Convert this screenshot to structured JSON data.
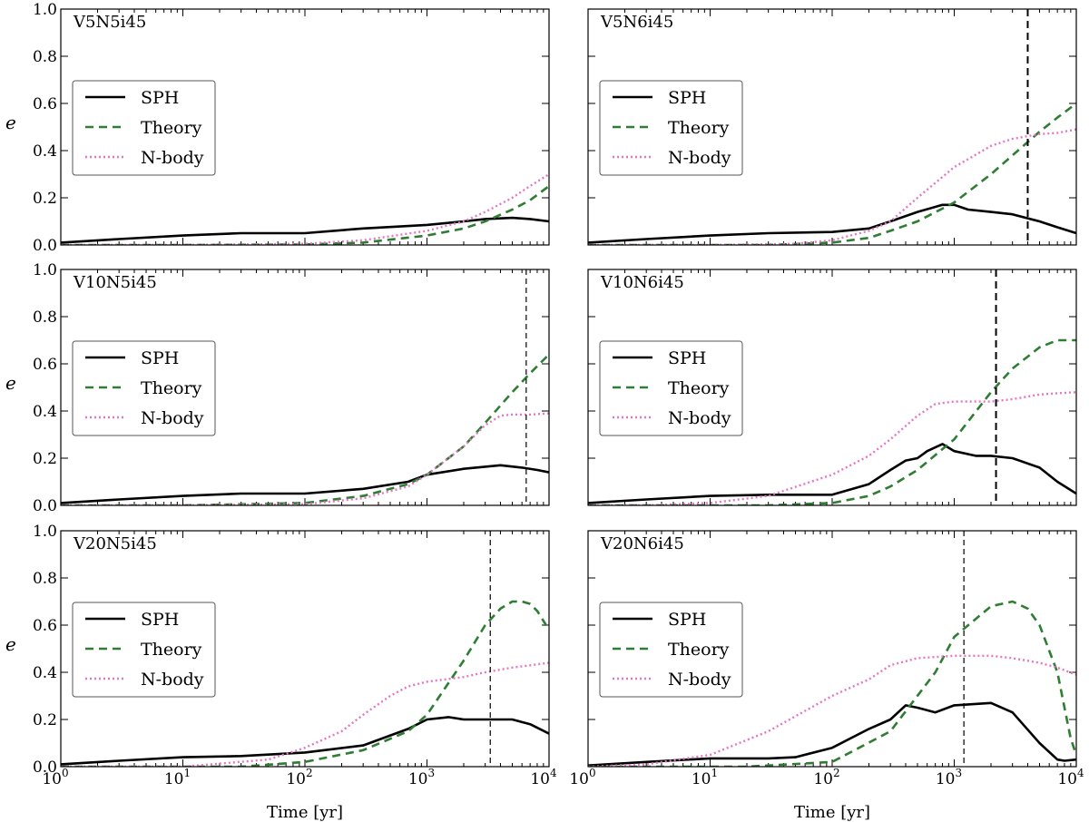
{
  "chart_data": [
    {
      "type": "line",
      "title": "V5N5i45",
      "xscale": "log",
      "xlim": [
        1,
        10000
      ],
      "ylim": [
        0,
        1.0
      ],
      "xlabel": "",
      "ylabel": "e",
      "legend_position": "center-left",
      "vline": null,
      "series": [
        {
          "name": "SPH",
          "style": "solid",
          "color": "#000000",
          "x": [
            1,
            3,
            10,
            30,
            100,
            300,
            1000,
            2000,
            3000,
            5000,
            7000,
            10000
          ],
          "y": [
            0.01,
            0.025,
            0.04,
            0.05,
            0.05,
            0.07,
            0.085,
            0.1,
            0.11,
            0.115,
            0.11,
            0.1
          ]
        },
        {
          "name": "Theory",
          "style": "dashed",
          "color": "#2e7d32",
          "x": [
            1,
            10,
            100,
            300,
            1000,
            2000,
            3000,
            5000,
            7000,
            10000
          ],
          "y": [
            0,
            0,
            0.002,
            0.01,
            0.04,
            0.07,
            0.1,
            0.15,
            0.19,
            0.25
          ]
        },
        {
          "name": "N-body",
          "style": "dotted",
          "color": "#e377c2",
          "x": [
            1,
            10,
            100,
            300,
            1000,
            2000,
            3000,
            5000,
            7000,
            10000
          ],
          "y": [
            0,
            0,
            0.005,
            0.02,
            0.06,
            0.1,
            0.14,
            0.2,
            0.25,
            0.3
          ]
        }
      ]
    },
    {
      "type": "line",
      "title": "V5N6i45",
      "xscale": "log",
      "xlim": [
        1,
        10000
      ],
      "ylim": [
        0,
        1.0
      ],
      "xlabel": "",
      "ylabel": "",
      "legend_position": "center-left",
      "vline": {
        "x": 4000,
        "style": "thick"
      },
      "series": [
        {
          "name": "SPH",
          "style": "solid",
          "color": "#000000",
          "x": [
            1,
            3,
            10,
            30,
            100,
            200,
            300,
            500,
            800,
            1000,
            1300,
            2000,
            3000,
            5000,
            7000,
            10000
          ],
          "y": [
            0.01,
            0.025,
            0.04,
            0.05,
            0.055,
            0.07,
            0.1,
            0.14,
            0.17,
            0.17,
            0.15,
            0.14,
            0.13,
            0.1,
            0.075,
            0.05
          ]
        },
        {
          "name": "Theory",
          "style": "dashed",
          "color": "#2e7d32",
          "x": [
            1,
            30,
            100,
            200,
            300,
            500,
            1000,
            2000,
            3000,
            5000,
            7000,
            10000
          ],
          "y": [
            0,
            0,
            0.01,
            0.03,
            0.06,
            0.1,
            0.18,
            0.3,
            0.38,
            0.48,
            0.54,
            0.6
          ]
        },
        {
          "name": "N-body",
          "style": "dotted",
          "color": "#e377c2",
          "x": [
            1,
            10,
            50,
            100,
            200,
            300,
            500,
            1000,
            2000,
            3000,
            5000,
            7000,
            10000
          ],
          "y": [
            0,
            0,
            0.005,
            0.02,
            0.06,
            0.1,
            0.2,
            0.33,
            0.42,
            0.45,
            0.47,
            0.475,
            0.49
          ]
        }
      ]
    },
    {
      "type": "line",
      "title": "V10N5i45",
      "xscale": "log",
      "xlim": [
        1,
        10000
      ],
      "ylim": [
        0,
        1.0
      ],
      "xlabel": "",
      "ylabel": "e",
      "legend_position": "center-left",
      "vline": {
        "x": 6500,
        "style": "thin"
      },
      "series": [
        {
          "name": "SPH",
          "style": "solid",
          "color": "#000000",
          "x": [
            1,
            3,
            10,
            30,
            100,
            300,
            700,
            1000,
            2000,
            4000,
            6000,
            8000,
            10000
          ],
          "y": [
            0.01,
            0.025,
            0.04,
            0.05,
            0.05,
            0.07,
            0.1,
            0.13,
            0.155,
            0.17,
            0.16,
            0.15,
            0.14
          ]
        },
        {
          "name": "Theory",
          "style": "dashed",
          "color": "#2e7d32",
          "x": [
            1,
            10,
            100,
            300,
            700,
            1000,
            2000,
            3000,
            5000,
            7000,
            10000
          ],
          "y": [
            0,
            0,
            0.01,
            0.04,
            0.09,
            0.13,
            0.25,
            0.35,
            0.48,
            0.56,
            0.64
          ]
        },
        {
          "name": "N-body",
          "style": "dotted",
          "color": "#e377c2",
          "x": [
            1,
            10,
            100,
            300,
            700,
            1000,
            2000,
            3000,
            4000,
            5000,
            7000,
            10000
          ],
          "y": [
            0,
            0,
            0.005,
            0.03,
            0.08,
            0.13,
            0.25,
            0.34,
            0.38,
            0.385,
            0.385,
            0.39
          ]
        }
      ]
    },
    {
      "type": "line",
      "title": "V10N6i45",
      "xscale": "log",
      "xlim": [
        1,
        10000
      ],
      "ylim": [
        0,
        1.0
      ],
      "xlabel": "",
      "ylabel": "",
      "legend_position": "center-left",
      "vline": {
        "x": 2200,
        "style": "thick"
      },
      "series": [
        {
          "name": "SPH",
          "style": "solid",
          "color": "#000000",
          "x": [
            1,
            3,
            10,
            30,
            100,
            200,
            300,
            400,
            500,
            600,
            800,
            1000,
            1500,
            2000,
            3000,
            5000,
            7000,
            10000
          ],
          "y": [
            0.01,
            0.025,
            0.04,
            0.045,
            0.045,
            0.09,
            0.15,
            0.19,
            0.2,
            0.23,
            0.26,
            0.23,
            0.21,
            0.21,
            0.2,
            0.16,
            0.1,
            0.05
          ]
        },
        {
          "name": "Theory",
          "style": "dashed",
          "color": "#2e7d32",
          "x": [
            1,
            30,
            100,
            200,
            300,
            500,
            1000,
            2000,
            3000,
            5000,
            7000,
            10000
          ],
          "y": [
            0,
            0,
            0.01,
            0.04,
            0.08,
            0.15,
            0.28,
            0.48,
            0.58,
            0.67,
            0.7,
            0.7
          ]
        },
        {
          "name": "N-body",
          "style": "dotted",
          "color": "#e377c2",
          "x": [
            1,
            3,
            10,
            30,
            100,
            200,
            300,
            500,
            700,
            1000,
            2000,
            3000,
            5000,
            10000
          ],
          "y": [
            0,
            0,
            0.01,
            0.04,
            0.13,
            0.21,
            0.28,
            0.38,
            0.43,
            0.44,
            0.44,
            0.45,
            0.47,
            0.48
          ]
        }
      ]
    },
    {
      "type": "line",
      "title": "V20N5i45",
      "xscale": "log",
      "xlim": [
        1,
        10000
      ],
      "ylim": [
        0,
        1.0
      ],
      "xlabel": "Time [yr]",
      "ylabel": "e",
      "legend_position": "center-left",
      "vline": {
        "x": 3300,
        "style": "thin"
      },
      "series": [
        {
          "name": "SPH",
          "style": "solid",
          "color": "#000000",
          "x": [
            1,
            3,
            10,
            30,
            100,
            300,
            700,
            1000,
            1500,
            2000,
            3000,
            5000,
            7000,
            10000
          ],
          "y": [
            0.01,
            0.025,
            0.04,
            0.045,
            0.06,
            0.09,
            0.16,
            0.2,
            0.21,
            0.2,
            0.2,
            0.2,
            0.18,
            0.14
          ]
        },
        {
          "name": "Theory",
          "style": "dashed",
          "color": "#2e7d32",
          "x": [
            1,
            30,
            100,
            300,
            700,
            1000,
            2000,
            3000,
            4000,
            5000,
            6000,
            7000,
            8000,
            10000
          ],
          "y": [
            0,
            0,
            0.02,
            0.07,
            0.15,
            0.22,
            0.45,
            0.6,
            0.67,
            0.7,
            0.7,
            0.69,
            0.66,
            0.58
          ]
        },
        {
          "name": "N-body",
          "style": "dotted",
          "color": "#e377c2",
          "x": [
            1,
            10,
            50,
            100,
            200,
            300,
            500,
            700,
            1000,
            2000,
            3000,
            5000,
            10000
          ],
          "y": [
            0,
            0,
            0.03,
            0.08,
            0.15,
            0.22,
            0.3,
            0.34,
            0.36,
            0.38,
            0.4,
            0.42,
            0.44
          ]
        }
      ]
    },
    {
      "type": "line",
      "title": "V20N6i45",
      "xscale": "log",
      "xlim": [
        1,
        10000
      ],
      "ylim": [
        0,
        1.0
      ],
      "xlabel": "Time [yr]",
      "ylabel": "",
      "legend_position": "center-left",
      "vline": {
        "x": 1200,
        "style": "thin"
      },
      "series": [
        {
          "name": "SPH",
          "style": "solid",
          "color": "#000000",
          "x": [
            1,
            3,
            10,
            30,
            50,
            100,
            200,
            300,
            400,
            500,
            700,
            1000,
            2000,
            3000,
            5000,
            7000,
            8000,
            10000
          ],
          "y": [
            0.005,
            0.02,
            0.035,
            0.035,
            0.04,
            0.08,
            0.16,
            0.2,
            0.26,
            0.25,
            0.23,
            0.26,
            0.27,
            0.23,
            0.1,
            0.03,
            0.025,
            0.03
          ]
        },
        {
          "name": "Theory",
          "style": "dashed",
          "color": "#2e7d32",
          "x": [
            1,
            20,
            100,
            300,
            700,
            1000,
            2000,
            3000,
            4000,
            5000,
            7000,
            8000,
            9000,
            10000
          ],
          "y": [
            0,
            0,
            0.02,
            0.15,
            0.4,
            0.55,
            0.68,
            0.7,
            0.67,
            0.6,
            0.4,
            0.25,
            0.12,
            0.05
          ]
        },
        {
          "name": "N-body",
          "style": "dotted",
          "color": "#e377c2",
          "x": [
            1,
            3,
            10,
            30,
            100,
            200,
            300,
            500,
            1000,
            2000,
            3000,
            5000,
            7000,
            10000
          ],
          "y": [
            0,
            0.01,
            0.05,
            0.15,
            0.3,
            0.37,
            0.43,
            0.46,
            0.47,
            0.47,
            0.46,
            0.44,
            0.42,
            0.39
          ]
        }
      ]
    }
  ]
}
